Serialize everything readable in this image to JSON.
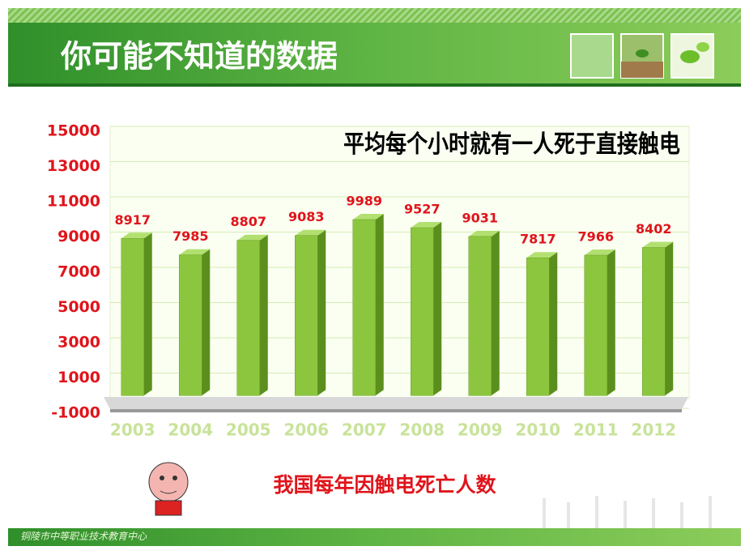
{
  "header": {
    "title": "你可能不知道的数据"
  },
  "chart_data": {
    "type": "bar",
    "title": "平均每个小时就有一人死于直接触电",
    "categories": [
      "2003",
      "2004",
      "2005",
      "2006",
      "2007",
      "2008",
      "2009",
      "2010",
      "2011",
      "2012"
    ],
    "values": [
      8917,
      7985,
      8807,
      9083,
      9989,
      9527,
      9031,
      7817,
      7966,
      8402
    ],
    "color": "#8cc63e",
    "ylim": [
      -1000,
      15000
    ],
    "yticks": [
      -1000,
      1000,
      3000,
      5000,
      7000,
      9000,
      11000,
      13000,
      15000
    ],
    "grid": true,
    "caption": "我国每年因触电死亡人数"
  },
  "footer": {
    "text": "铜陵市中等职业技术教育中心"
  }
}
